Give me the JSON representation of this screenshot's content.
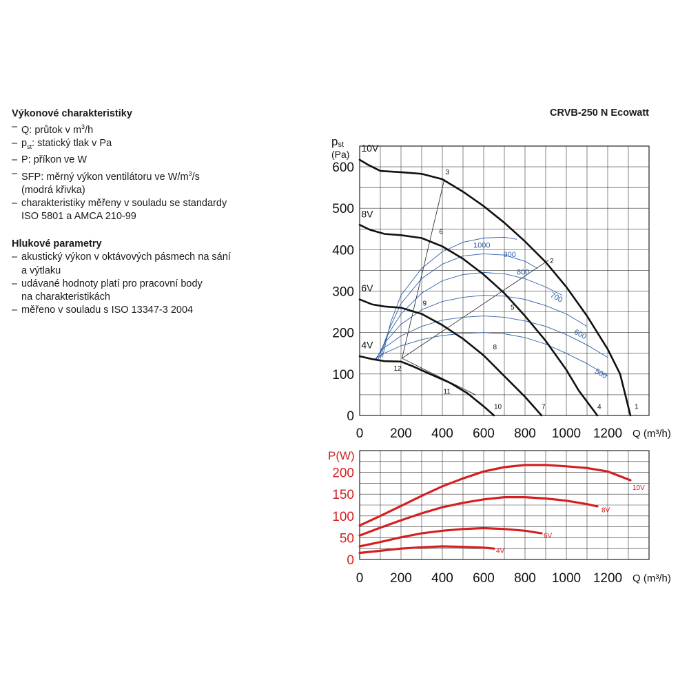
{
  "title": "CRVB-250 N Ecowatt",
  "left_panel": {
    "perf_heading": "Výkonové charakteristiky",
    "perf_items": [
      "Q: průtok v m³/h",
      "pst: statický tlak v Pa",
      "P: příkon ve W",
      "SFP: měrný výkon ventilátoru ve W/m³/s",
      "(modrá křivka)",
      "charakteristiky měřeny v souladu se standardy",
      "ISO 5801 a AMCA 210-99"
    ],
    "noise_heading": "Hlukové parametry",
    "noise_items": [
      "akustický výkon v oktávových pásmech na sání",
      "a výtlaku",
      "udávané hodnoty platí pro pracovní body",
      "na charakteristikách",
      "měřeno v souladu s ISO 13347-3 2004"
    ]
  },
  "chart_data": [
    {
      "type": "line",
      "name": "pressure",
      "ylabel_main": "p",
      "ylabel_sub": "st",
      "ylabel_unit": "(Pa)",
      "xlabel": "Q (m³/h)",
      "xlim": [
        0,
        1400
      ],
      "ylim": [
        0,
        650
      ],
      "x_ticks": [
        0,
        200,
        400,
        600,
        800,
        1000,
        1200
      ],
      "y_ticks": [
        0,
        100,
        200,
        300,
        400,
        500,
        600
      ],
      "grid": true,
      "colors": {
        "fan": "#111111",
        "sfp": "#2f5fa8",
        "lines": "#333333"
      },
      "series": [
        {
          "name": "10V",
          "points": [
            [
              0,
              617
            ],
            [
              40,
              605
            ],
            [
              100,
              590
            ],
            [
              200,
              587
            ],
            [
              300,
              583
            ],
            [
              400,
              570
            ],
            [
              500,
              540
            ],
            [
              600,
              505
            ],
            [
              700,
              465
            ],
            [
              800,
              420
            ],
            [
              900,
              370
            ],
            [
              1000,
              310
            ],
            [
              1100,
              240
            ],
            [
              1200,
              160
            ],
            [
              1260,
              100
            ],
            [
              1310,
              0
            ]
          ]
        },
        {
          "name": "8V",
          "points": [
            [
              0,
              460
            ],
            [
              50,
              448
            ],
            [
              120,
              438
            ],
            [
              200,
              435
            ],
            [
              300,
              428
            ],
            [
              400,
              408
            ],
            [
              500,
              378
            ],
            [
              600,
              340
            ],
            [
              700,
              295
            ],
            [
              800,
              240
            ],
            [
              900,
              180
            ],
            [
              1000,
              110
            ],
            [
              1060,
              60
            ],
            [
              1150,
              0
            ]
          ]
        },
        {
          "name": "6V",
          "points": [
            [
              0,
              280
            ],
            [
              60,
              268
            ],
            [
              120,
              263
            ],
            [
              200,
              260
            ],
            [
              300,
              245
            ],
            [
              400,
              218
            ],
            [
              500,
              185
            ],
            [
              600,
              145
            ],
            [
              700,
              95
            ],
            [
              800,
              45
            ],
            [
              880,
              0
            ]
          ]
        },
        {
          "name": "4V",
          "points": [
            [
              0,
              143
            ],
            [
              60,
              136
            ],
            [
              120,
              131
            ],
            [
              200,
              130
            ],
            [
              260,
              118
            ],
            [
              350,
              98
            ],
            [
              440,
              78
            ],
            [
              520,
              54
            ],
            [
              600,
              22
            ],
            [
              650,
              0
            ]
          ]
        }
      ],
      "sfp_series": [
        {
          "label": "1000",
          "points": [
            [
              110,
              140
            ],
            [
              150,
              225
            ],
            [
              200,
              290
            ],
            [
              300,
              355
            ],
            [
              400,
              395
            ],
            [
              500,
              418
            ],
            [
              600,
              428
            ],
            [
              700,
              430
            ],
            [
              760,
              425
            ]
          ]
        },
        {
          "label": "900",
          "points": [
            [
              100,
              138
            ],
            [
              140,
              205
            ],
            [
              200,
              270
            ],
            [
              300,
              330
            ],
            [
              400,
              365
            ],
            [
              500,
              385
            ],
            [
              600,
              390
            ],
            [
              700,
              387
            ],
            [
              800,
              372
            ],
            [
              860,
              355
            ]
          ]
        },
        {
          "label": "800",
          "points": [
            [
              90,
              136
            ],
            [
              130,
              190
            ],
            [
              200,
              245
            ],
            [
              300,
              295
            ],
            [
              400,
              325
            ],
            [
              500,
              340
            ],
            [
              600,
              345
            ],
            [
              700,
              342
            ],
            [
              800,
              330
            ],
            [
              900,
              310
            ],
            [
              980,
              290
            ]
          ]
        },
        {
          "label": "700",
          "points": [
            [
              80,
              135
            ],
            [
              120,
              175
            ],
            [
              200,
              220
            ],
            [
              300,
              255
            ],
            [
              400,
              275
            ],
            [
              500,
              285
            ],
            [
              600,
              290
            ],
            [
              700,
              288
            ],
            [
              800,
              280
            ],
            [
              900,
              265
            ],
            [
              1000,
              245
            ],
            [
              1100,
              215
            ]
          ]
        },
        {
          "label": "600",
          "points": [
            [
              75,
              135
            ],
            [
              110,
              160
            ],
            [
              200,
              192
            ],
            [
              300,
              215
            ],
            [
              400,
              230
            ],
            [
              500,
              237
            ],
            [
              600,
              240
            ],
            [
              700,
              237
            ],
            [
              800,
              228
            ],
            [
              900,
              215
            ],
            [
              1000,
              195
            ],
            [
              1100,
              170
            ],
            [
              1200,
              140
            ]
          ]
        },
        {
          "label": "500",
          "points": [
            [
              70,
              135
            ],
            [
              110,
              148
            ],
            [
              200,
              168
            ],
            [
              300,
              183
            ],
            [
              400,
              193
            ],
            [
              500,
              198
            ],
            [
              600,
              200
            ],
            [
              700,
              197
            ],
            [
              800,
              188
            ],
            [
              900,
              172
            ],
            [
              1000,
              150
            ],
            [
              1100,
              125
            ],
            [
              1200,
              95
            ]
          ]
        }
      ],
      "point_labels": [
        {
          "label": "1",
          "q": 1330,
          "p": 16
        },
        {
          "label": "2",
          "q": 920,
          "p": 367
        },
        {
          "label": "3",
          "q": 415,
          "p": 582
        },
        {
          "label": "4",
          "q": 1150,
          "p": 16
        },
        {
          "label": "5",
          "q": 730,
          "p": 255
        },
        {
          "label": "6",
          "q": 385,
          "p": 438
        },
        {
          "label": "7",
          "q": 880,
          "p": 16
        },
        {
          "label": "8",
          "q": 645,
          "p": 160
        },
        {
          "label": "9",
          "q": 305,
          "p": 265
        },
        {
          "label": "10",
          "q": 650,
          "p": 16
        },
        {
          "label": "11",
          "q": 405,
          "p": 52
        },
        {
          "label": "12",
          "q": 165,
          "p": 108
        }
      ],
      "op_lines": [
        {
          "from": [
            205,
            138
          ],
          "to": [
            410,
            570
          ]
        },
        {
          "from": [
            205,
            138
          ],
          "to": [
            915,
            375
          ]
        },
        {
          "from": [
            205,
            138
          ],
          "to": [
            560,
            50
          ]
        }
      ]
    },
    {
      "type": "line",
      "name": "power",
      "ylabel": "P(W)",
      "xlabel": "Q (m³/h)",
      "xlim": [
        0,
        1400
      ],
      "ylim": [
        0,
        250
      ],
      "x_ticks": [
        0,
        200,
        400,
        600,
        800,
        1000,
        1200
      ],
      "y_ticks": [
        0,
        50,
        100,
        150,
        200
      ],
      "grid": true,
      "color": "#d42020",
      "series": [
        {
          "name": "10V",
          "points": [
            [
              0,
              78
            ],
            [
              100,
              100
            ],
            [
              200,
              123
            ],
            [
              300,
              146
            ],
            [
              400,
              168
            ],
            [
              500,
              186
            ],
            [
              600,
              202
            ],
            [
              700,
              212
            ],
            [
              800,
              217
            ],
            [
              900,
              217
            ],
            [
              1000,
              214
            ],
            [
              1100,
              210
            ],
            [
              1200,
              202
            ],
            [
              1310,
              182
            ]
          ]
        },
        {
          "name": "8V",
          "points": [
            [
              0,
              55
            ],
            [
              100,
              73
            ],
            [
              200,
              90
            ],
            [
              300,
              106
            ],
            [
              400,
              120
            ],
            [
              500,
              130
            ],
            [
              600,
              138
            ],
            [
              700,
              143
            ],
            [
              800,
              143
            ],
            [
              900,
              140
            ],
            [
              1000,
              135
            ],
            [
              1100,
              127
            ],
            [
              1150,
              122
            ]
          ]
        },
        {
          "name": "6V",
          "points": [
            [
              0,
              30
            ],
            [
              100,
              40
            ],
            [
              200,
              51
            ],
            [
              300,
              60
            ],
            [
              400,
              66
            ],
            [
              500,
              70
            ],
            [
              600,
              72
            ],
            [
              700,
              70
            ],
            [
              800,
              66
            ],
            [
              880,
              60
            ]
          ]
        },
        {
          "name": "4V",
          "points": [
            [
              0,
              15
            ],
            [
              100,
              20
            ],
            [
              200,
              25
            ],
            [
              300,
              28
            ],
            [
              400,
              30
            ],
            [
              500,
              29
            ],
            [
              600,
              27
            ],
            [
              650,
              25
            ]
          ]
        }
      ]
    }
  ]
}
